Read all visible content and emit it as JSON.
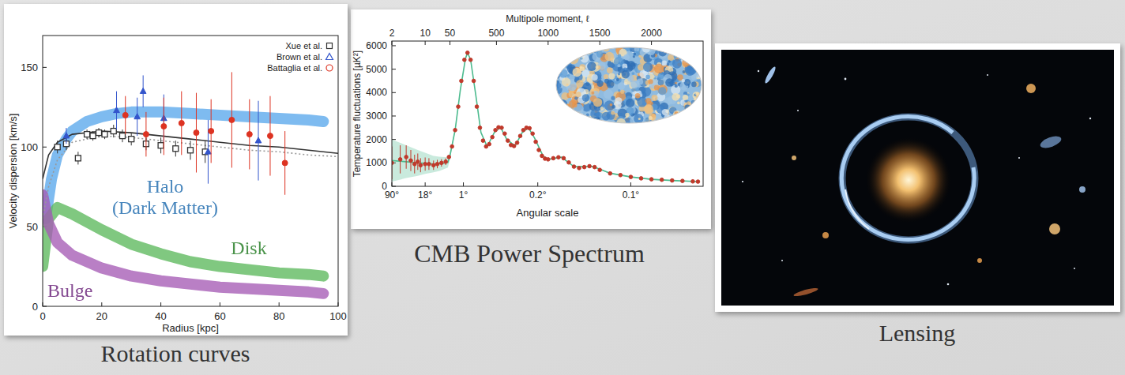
{
  "chart_data": [
    {
      "type": "line",
      "title": "Rotation curves",
      "xlabel": "Radius [kpc]",
      "ylabel": "Velocity dispersion [km/s]",
      "xlim": [
        0,
        100
      ],
      "ylim": [
        0,
        170
      ],
      "xticks": [
        0,
        20,
        40,
        60,
        80,
        100
      ],
      "yticks": [
        0,
        50,
        100,
        150
      ],
      "legend": "top-right",
      "series": [
        {
          "name": "Halo (Dark Matter)",
          "type": "band",
          "color": "#5aa8ec",
          "x": [
            1,
            3,
            5,
            8,
            10,
            15,
            20,
            25,
            30,
            40,
            50,
            60,
            70,
            80,
            90,
            95
          ],
          "values": [
            55,
            80,
            95,
            105,
            110,
            116,
            119,
            121,
            122,
            122,
            121,
            120,
            119,
            118,
            117,
            116
          ]
        },
        {
          "name": "Disk",
          "type": "band",
          "color": "#5cb85c",
          "x": [
            0,
            2,
            5,
            10,
            20,
            30,
            40,
            50,
            60,
            70,
            80,
            90,
            95
          ],
          "values": [
            25,
            55,
            62,
            58,
            48,
            39,
            33,
            28,
            25,
            23,
            21,
            20,
            19
          ]
        },
        {
          "name": "Bulge",
          "type": "band",
          "color": "#a55bb5",
          "x": [
            0,
            2,
            5,
            10,
            20,
            30,
            40,
            50,
            60,
            70,
            80,
            90,
            95
          ],
          "values": [
            70,
            52,
            40,
            32,
            24,
            19,
            16,
            14,
            12,
            11,
            10,
            9,
            8
          ]
        },
        {
          "type": "line",
          "color": "#333333",
          "line_style": "solid",
          "x": [
            0,
            2,
            5,
            10,
            20,
            30,
            40,
            50,
            60,
            70,
            80,
            90,
            100
          ],
          "values": [
            80,
            95,
            103,
            108,
            110,
            109,
            107,
            105,
            103,
            101,
            100,
            98,
            96
          ]
        },
        {
          "type": "line",
          "color": "#999999",
          "line_style": "dotted",
          "x": [
            0,
            2,
            5,
            10,
            20,
            30,
            40,
            50,
            60,
            70,
            80,
            90,
            100
          ],
          "values": [
            55,
            75,
            92,
            103,
            107,
            106,
            104,
            102,
            100,
            98,
            97,
            95,
            94
          ]
        },
        {
          "name": "Xue et al.",
          "type": "scatter",
          "color": "#333333",
          "marker": "square",
          "x": [
            5,
            8,
            12,
            15,
            17,
            19,
            21,
            24,
            27,
            30,
            35,
            40,
            45,
            50,
            55
          ],
          "values": [
            100,
            102,
            93,
            108,
            107,
            109,
            108,
            110,
            107,
            105,
            102,
            101,
            99,
            98,
            97
          ],
          "errors": [
            4,
            4,
            4,
            3,
            3,
            3,
            3,
            4,
            4,
            4,
            4,
            5,
            5,
            6,
            7
          ]
        },
        {
          "name": "Brown et al.",
          "type": "scatter",
          "color": "#3355cc",
          "marker": "triangle",
          "x": [
            8,
            25,
            32,
            34,
            41,
            56,
            73
          ],
          "values": [
            107,
            123,
            119,
            135,
            118,
            97,
            104
          ],
          "errors": [
            5,
            12,
            12,
            10,
            15,
            20,
            25
          ]
        },
        {
          "name": "Battaglia et al.",
          "type": "scatter",
          "color": "#dd3322",
          "marker": "circle",
          "x": [
            28,
            35,
            41,
            47,
            52,
            57,
            64,
            70,
            77,
            82
          ],
          "values": [
            120,
            108,
            113,
            115,
            109,
            110,
            117,
            108,
            107,
            90
          ],
          "errors": [
            12,
            14,
            18,
            20,
            25,
            20,
            30,
            22,
            25,
            20
          ]
        }
      ]
    },
    {
      "type": "scatter",
      "title": "CMB Power Spectrum",
      "xlabel": "Multipole moment, ℓ",
      "x2label": "Angular scale",
      "ylabel": "Temperature fluctuations [µK²]",
      "xlim": [
        2,
        2500
      ],
      "ylim": [
        0,
        6200
      ],
      "xticks": [
        2,
        10,
        50,
        500,
        1000,
        1500,
        2000
      ],
      "x2ticks": [
        {
          "value": 2,
          "label": "90°"
        },
        {
          "value": 10,
          "label": "18°"
        },
        {
          "value": 180,
          "label": "1°"
        },
        {
          "value": 900,
          "label": "0.2°"
        },
        {
          "value": 1800,
          "label": "0.1°"
        }
      ],
      "yticks": [
        0,
        1000,
        2000,
        3000,
        4000,
        5000,
        6000
      ],
      "series": [
        {
          "type": "line",
          "color": "#4dbb8f",
          "line_style": "solid",
          "x": [
            2,
            4,
            7,
            10,
            15,
            20,
            30,
            50,
            100,
            150,
            200,
            220,
            250,
            300,
            350,
            410,
            480,
            540,
            600,
            680,
            750,
            810,
            870,
            950,
            1000,
            1130,
            1250,
            1430,
            1600,
            1800,
            2000,
            2200,
            2450
          ],
          "values": [
            1100,
            1050,
            1000,
            980,
            950,
            960,
            1020,
            1300,
            2400,
            4100,
            5450,
            5700,
            5400,
            3900,
            2300,
            1700,
            2300,
            2520,
            2000,
            1720,
            2300,
            2500,
            2050,
            1300,
            1150,
            1240,
            840,
            850,
            560,
            400,
            300,
            250,
            200
          ],
          "errors": [
            900,
            700,
            550,
            450,
            350,
            300,
            220,
            150,
            60,
            40,
            40,
            40,
            40,
            40,
            30,
            30,
            30,
            30,
            30,
            30,
            30,
            30,
            30,
            30,
            20,
            20,
            20,
            20,
            20,
            20,
            20,
            20,
            20
          ]
        },
        {
          "type": "scatter",
          "color": "#c0392b",
          "marker": "circle",
          "x": [
            2,
            3,
            4,
            5,
            6,
            7,
            8,
            10,
            12,
            15,
            18,
            22,
            27,
            40,
            70,
            100,
            130,
            160,
            190,
            220,
            250,
            280,
            310,
            340,
            370,
            400,
            430,
            460,
            490,
            520,
            550,
            580,
            610,
            640,
            670,
            700,
            730,
            760,
            790,
            820,
            850,
            880,
            910,
            940,
            970,
            1000,
            1050,
            1100,
            1150,
            1200,
            1250,
            1300,
            1350,
            1400,
            1450,
            1500,
            1600,
            1700,
            1800,
            1900,
            2000,
            2100,
            2200,
            2300,
            2400,
            2450
          ],
          "values": [
            1000,
            1150,
            1250,
            1100,
            950,
            1050,
            900,
            950,
            950,
            900,
            950,
            1000,
            1050,
            1250,
            1700,
            2400,
            3400,
            4500,
            5400,
            5700,
            5400,
            4500,
            3400,
            2500,
            1950,
            1700,
            1800,
            2100,
            2400,
            2520,
            2500,
            2250,
            1950,
            1760,
            1720,
            1860,
            2150,
            2400,
            2500,
            2480,
            2250,
            1900,
            1550,
            1300,
            1180,
            1150,
            1200,
            1240,
            1200,
            1020,
            840,
            780,
            820,
            860,
            820,
            700,
            550,
            480,
            400,
            340,
            300,
            280,
            250,
            230,
            210,
            200
          ],
          "errors": [
            700,
            600,
            500,
            450,
            400,
            350,
            300,
            280,
            250,
            200,
            180,
            160,
            140,
            60,
            50,
            45,
            40,
            40,
            40,
            40,
            40,
            40,
            40,
            35,
            35,
            35,
            35,
            35,
            35,
            35,
            35,
            35,
            35,
            30,
            30,
            30,
            30,
            30,
            30,
            30,
            30,
            30,
            30,
            30,
            30,
            30,
            30,
            30,
            30,
            30,
            30,
            30,
            30,
            30,
            30,
            30,
            30,
            30,
            30,
            30,
            30,
            30,
            30,
            30,
            35,
            40
          ]
        }
      ]
    }
  ],
  "image": {
    "caption": "Lensing"
  }
}
